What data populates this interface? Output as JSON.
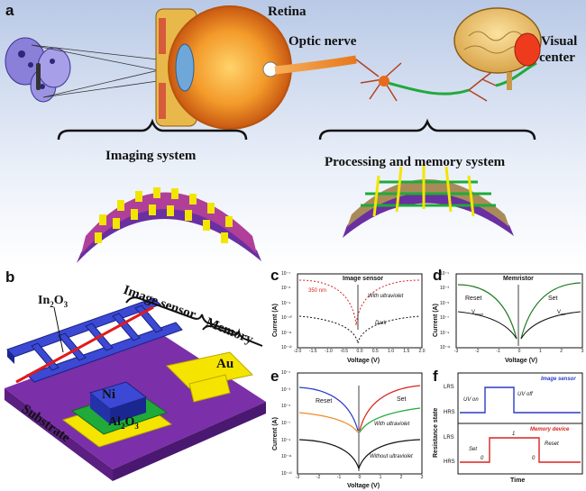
{
  "panel_a": {
    "letter": "a",
    "retina": "Retina",
    "optic_nerve": "Optic nerve",
    "visual_center_1": "Visual",
    "visual_center_2": "center",
    "imaging_system": "Imaging system",
    "processing_memory": "Processing and memory system"
  },
  "panel_b": {
    "letter": "b",
    "in2o3": "In",
    "in2o3_sub": "2",
    "in2o3_end": "O",
    "in2o3_sub2": "3",
    "image_sensor": "Image sensor",
    "memory": "Memory",
    "au": "Au",
    "ni": "Ni",
    "al2o3": "Al",
    "al2o3_sub": "2",
    "al2o3_end": "O",
    "al2o3_sub2": "3",
    "substrate": "Substrate"
  },
  "panel_c": {
    "letter": "c",
    "title": "Image sensor",
    "legend": "350 nm",
    "with_uv": "With ultraviolet",
    "dark": "Dark",
    "xlabel": "Voltage (V)",
    "ylabel": "Current (A)",
    "xticks": [
      "-2.0",
      "-1.5",
      "-1.0",
      "-0.5",
      "0.0",
      "0.5",
      "1.0",
      "1.5",
      "2.0"
    ],
    "yticks": [
      "10⁻⁷",
      "10⁻⁸",
      "10⁻⁹",
      "10⁻¹⁰",
      "10⁻¹¹",
      "10⁻¹²"
    ]
  },
  "panel_d": {
    "letter": "d",
    "title": "Memristor",
    "reset": "Reset",
    "set": "Set",
    "vreset": "V",
    "vreset_sub": "reset",
    "vset": "V",
    "vset_sub": "set",
    "xlabel": "Voltage (V)",
    "ylabel": "Current (A)",
    "xticks": [
      "-3",
      "-2",
      "-1",
      "0",
      "1",
      "2",
      "3"
    ],
    "yticks": [
      "10⁻¹",
      "10⁻³",
      "10⁻⁵",
      "10⁻⁷",
      "10⁻⁹",
      "10⁻¹¹"
    ]
  },
  "panel_e": {
    "letter": "e",
    "reset": "Reset",
    "set": "Set",
    "with_uv": "With ultraviolet",
    "without_uv": "Without ultraviolet",
    "xlabel": "Voltage (V)",
    "ylabel": "Current (A)",
    "xticks": [
      "-3",
      "-2",
      "-1",
      "0",
      "1",
      "2",
      "3"
    ],
    "yticks": [
      "10⁻¹",
      "10⁻³",
      "10⁻⁵",
      "10⁻⁷",
      "10⁻⁹",
      "10⁻¹¹",
      "10⁻¹³"
    ]
  },
  "panel_f": {
    "letter": "f",
    "image_sensor": "Image sensor",
    "memory_device": "Memory device",
    "uv_on": "UV on",
    "uv_off": "UV off",
    "set": "Set",
    "reset": "Reset",
    "state0a": "0",
    "state1": "1",
    "state0b": "0",
    "lrs1": "LRS",
    "hrs1": "HRS",
    "lrs2": "LRS",
    "hrs2": "HRS",
    "xlabel": "Time",
    "ylabel": "Resistance state"
  },
  "colors": {
    "grid_purple": "#7b2fa8",
    "grid_yellow": "#f2e600",
    "blue": "#2b3cc4",
    "green": "#1faa3a",
    "red": "#d8241e",
    "dark_green": "#1e7a1e",
    "nerve_orange": "#f08a24"
  }
}
